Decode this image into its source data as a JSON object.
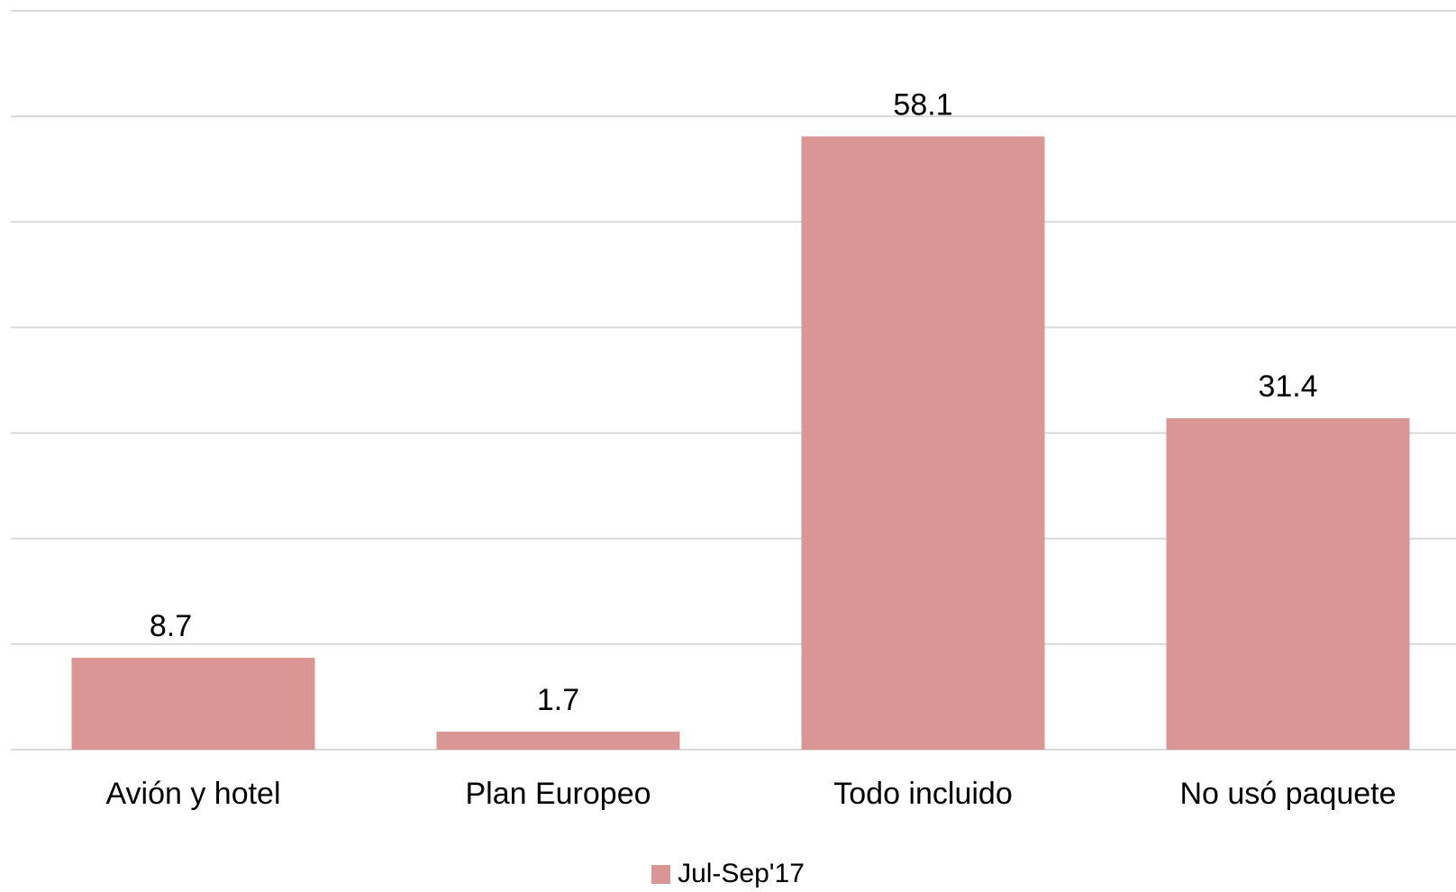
{
  "chart_data": {
    "type": "bar",
    "categories": [
      "Avión y hotel",
      "Plan Europeo",
      "Todo incluido",
      "No usó paquete"
    ],
    "series": [
      {
        "name": "Jul-Sep'17",
        "values": [
          8.7,
          1.7,
          58.1,
          31.4
        ],
        "color": "#d99694"
      }
    ],
    "data_labels": [
      "8.7",
      "1.7",
      "58.1",
      "31.4"
    ],
    "ylim": [
      0,
      70
    ],
    "ytick_step": 10,
    "y_axis_labels_visible": false,
    "grid": true,
    "legend_position": "bottom"
  }
}
